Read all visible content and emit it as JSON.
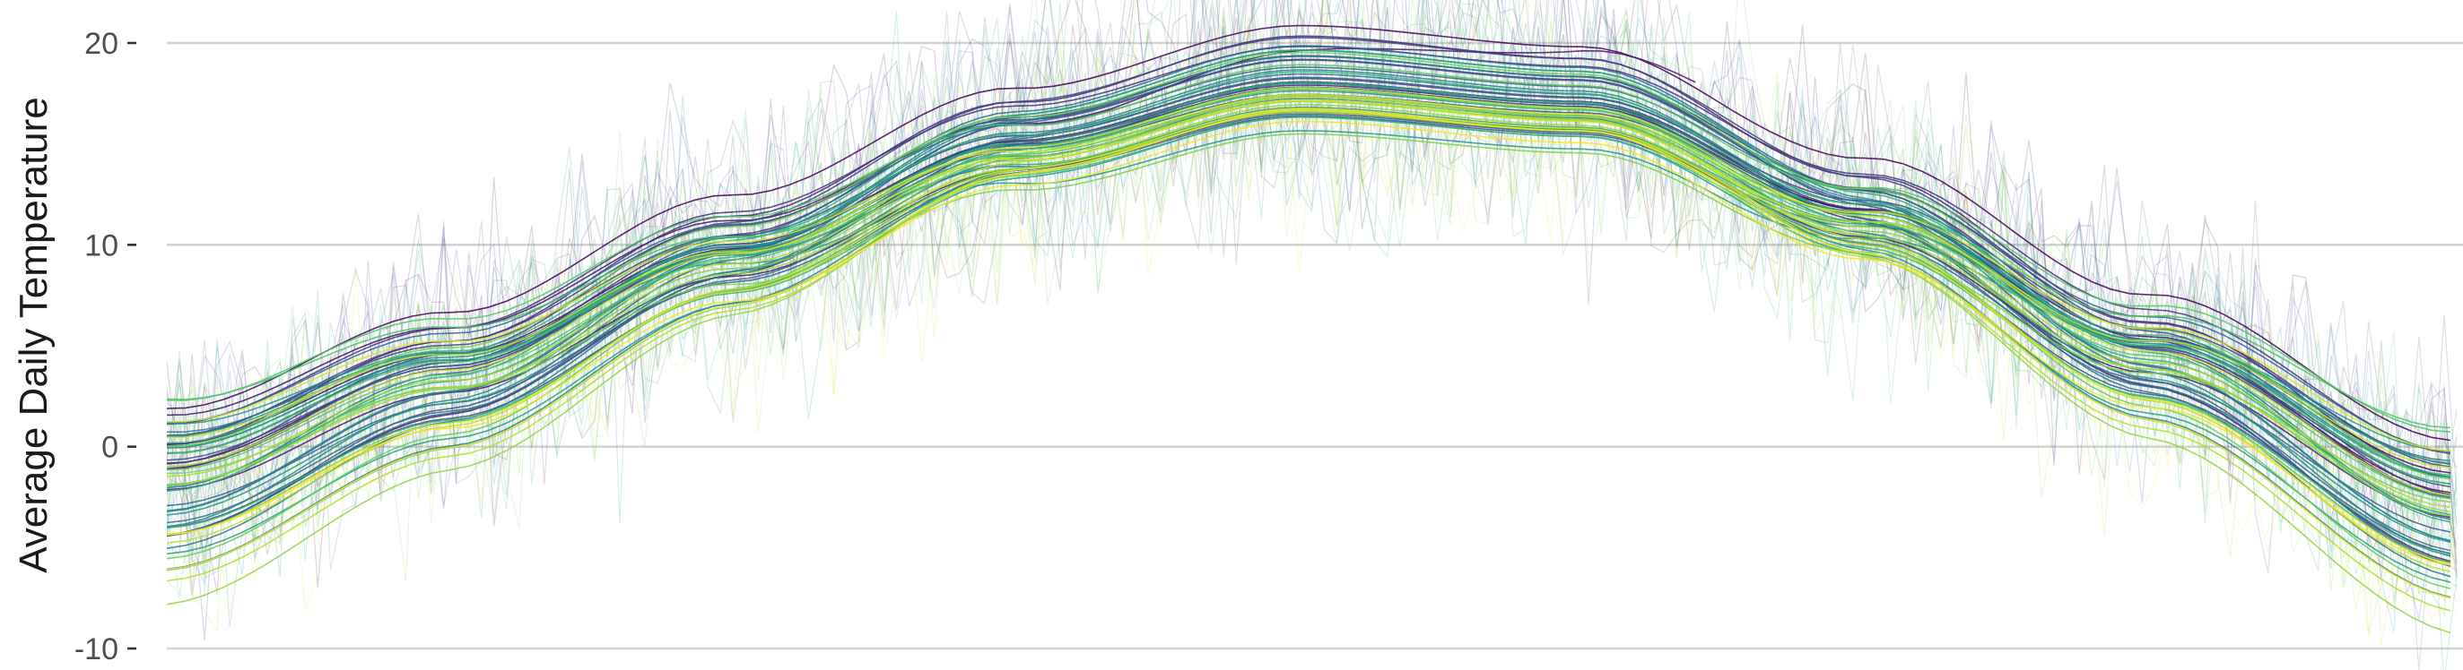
{
  "chart_data": {
    "type": "line",
    "title": "",
    "xlabel": "",
    "ylabel": "Average Daily Temperature",
    "ylim": [
      -10,
      20
    ],
    "xlim": [
      0,
      365
    ],
    "y_ticks": [
      {
        "value": -10,
        "label": "-10"
      },
      {
        "value": 0,
        "label": "0"
      },
      {
        "value": 10,
        "label": "10"
      },
      {
        "value": 20,
        "label": "20"
      }
    ],
    "grid": {
      "horizontal": true,
      "vertical": false
    },
    "legend": "none",
    "series_style": {
      "smoothed_lines": true,
      "raw_daily_points_and_lines": true,
      "palette": "viridis"
    },
    "series_count": 60,
    "smooth_profile": {
      "x": [
        0,
        45,
        90,
        135,
        180,
        225,
        270,
        315,
        365
      ],
      "y": [
        -1.5,
        3.5,
        9.5,
        15.0,
        18.0,
        17.0,
        11.5,
        4.5,
        -3.0
      ]
    },
    "colors": {
      "background": "#ffffff",
      "grid": "#d4d4d4",
      "viridis": [
        "#440154",
        "#472d7b",
        "#3b528b",
        "#2c728e",
        "#21918c",
        "#28ae80",
        "#5ec962",
        "#addc30",
        "#fde725"
      ]
    }
  }
}
